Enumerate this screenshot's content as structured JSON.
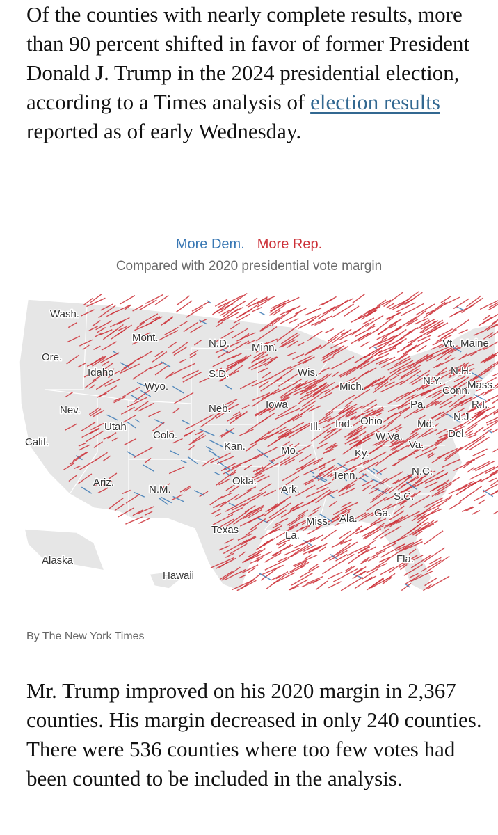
{
  "intro": {
    "before_link": "Of the counties with nearly complete results, more than 90 percent shifted in favor of former President Donald J. Trump in the 2024 presidential election, according to a Times analysis of ",
    "link_text": "election results",
    "after_link": " reported as of early Wednesday."
  },
  "legend": {
    "dem_label": "More Dem.",
    "rep_label": "More Rep.",
    "note": "Compared with 2020 presidential vote margin",
    "dem_color": "#3a78b4",
    "rep_color": "#cc2f36"
  },
  "map": {
    "state_labels": [
      "Wash.",
      "Ore.",
      "Idaho",
      "Mont.",
      "N.D.",
      "Minn.",
      "S.D.",
      "Wyo.",
      "Nev.",
      "Utah",
      "Calif.",
      "Colo.",
      "Neb.",
      "Iowa",
      "Wis.",
      "Mich.",
      "Kan.",
      "Mo.",
      "Ill.",
      "Ind.",
      "Ohio",
      "Ariz.",
      "N.M.",
      "Okla.",
      "Ark.",
      "Tenn.",
      "Ky.",
      "W.Va.",
      "Va.",
      "Pa.",
      "N.Y.",
      "Vt.",
      "Maine",
      "N.H.",
      "Mass.",
      "Conn.",
      "R.I.",
      "N.J.",
      "Md.",
      "Del.",
      "N.C.",
      "S.C.",
      "Ga.",
      "Ala.",
      "Miss.",
      "La.",
      "Texas",
      "Fla.",
      "Alaska",
      "Hawaii"
    ],
    "land_color": "#e6e6e6",
    "border_color": "#ffffff"
  },
  "credit": "By The New York Times",
  "outro": "Mr. Trump improved on his 2020 margin in 2,367 counties. His margin decreased in only 240 counties. There were 536 counties where too few votes had been counted to be included in the analysis."
}
